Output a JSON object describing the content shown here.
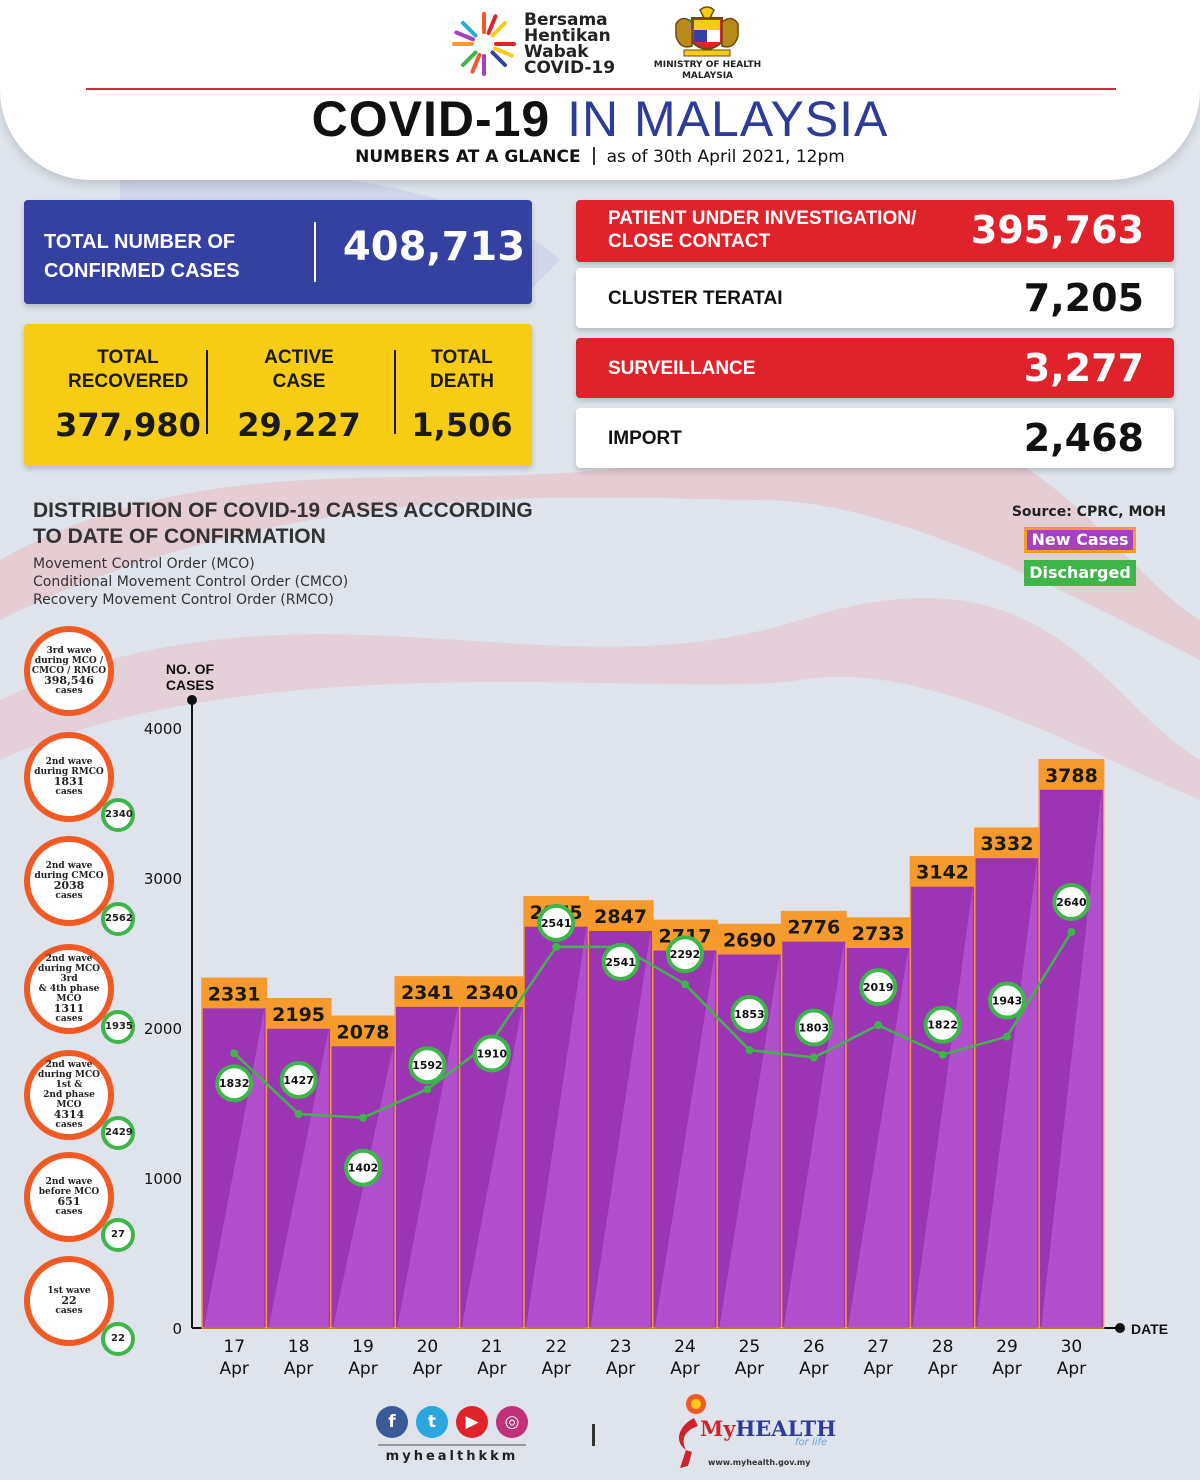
{
  "header": {
    "campaign_lines": [
      "Bersama",
      "Hentikan",
      "Wabak",
      "COVID-19"
    ],
    "ministry_lines": [
      "MINISTRY OF HEALTH",
      "MALAYSIA"
    ],
    "title_part1": "COVID-19",
    "title_part2": "IN MALAYSIA",
    "subtitle_bold": "NUMBERS AT A GLANCE",
    "subtitle_date": "as of 30th April 2021, 12pm"
  },
  "stats": {
    "total_confirmed_label": "TOTAL NUMBER OF CONFIRMED CASES",
    "total_confirmed_value": "408,713",
    "recovered_label": "TOTAL RECOVERED",
    "recovered_value": "377,980",
    "active_label": "ACTIVE CASE",
    "active_value": "29,227",
    "death_label": "TOTAL DEATH",
    "death_value": "1,506",
    "pui_label": "PATIENT UNDER INVESTIGATION/ CLOSE CONTACT",
    "pui_value": "395,763",
    "cluster_label": "CLUSTER TERATAI",
    "cluster_value": "7,205",
    "surveillance_label": "SURVEILLANCE",
    "surveillance_value": "3,277",
    "import_label": "IMPORT",
    "import_value": "2,468"
  },
  "distribution": {
    "title": "DISTRIBUTION OF COVID-19 CASES ACCORDING TO DATE OF CONFIRMATION",
    "notes": [
      "Movement Control Order (MCO)",
      "Conditional Movement Control Order (CMCO)",
      "Recovery Movement Control Order (RMCO)"
    ],
    "source": "Source: CPRC, MOH",
    "legend_new": "New Cases",
    "legend_discharged": "Discharged"
  },
  "waves": [
    {
      "lines": [
        "3rd wave",
        "during MCO /",
        "CMCO / RMCO"
      ],
      "cases": "398,546",
      "unit": "cases",
      "badge": ""
    },
    {
      "lines": [
        "2nd wave",
        "during RMCO"
      ],
      "cases": "1831",
      "unit": "cases",
      "badge": "2340"
    },
    {
      "lines": [
        "2nd wave",
        "during CMCO"
      ],
      "cases": "2038",
      "unit": "cases",
      "badge": "2562"
    },
    {
      "lines": [
        "2nd wave",
        "during MCO 3rd",
        "& 4th phase MCO"
      ],
      "cases": "1311",
      "unit": "cases",
      "badge": "1935"
    },
    {
      "lines": [
        "2nd wave",
        "during MCO 1st &",
        "2nd phase MCO"
      ],
      "cases": "4314",
      "unit": "cases",
      "badge": "2429"
    },
    {
      "lines": [
        "2nd wave",
        "before MCO"
      ],
      "cases": "651",
      "unit": "cases",
      "badge": "27"
    },
    {
      "lines": [
        "1st wave"
      ],
      "cases": "22",
      "unit": "cases",
      "badge": "22"
    }
  ],
  "chart_data": {
    "type": "bar",
    "ylabel": "NO. OF CASES",
    "xlabel": "DATE",
    "ylim": [
      0,
      4000
    ],
    "yticks": [
      0,
      1000,
      2000,
      3000,
      4000
    ],
    "categories": [
      [
        "17",
        "Apr"
      ],
      [
        "18",
        "Apr"
      ],
      [
        "19",
        "Apr"
      ],
      [
        "20",
        "Apr"
      ],
      [
        "21",
        "Apr"
      ],
      [
        "22",
        "Apr"
      ],
      [
        "23",
        "Apr"
      ],
      [
        "24",
        "Apr"
      ],
      [
        "25",
        "Apr"
      ],
      [
        "26",
        "Apr"
      ],
      [
        "27",
        "Apr"
      ],
      [
        "28",
        "Apr"
      ],
      [
        "29",
        "Apr"
      ],
      [
        "30",
        "Apr"
      ]
    ],
    "series": [
      {
        "name": "New Cases",
        "type": "bar",
        "color": "#a442bf",
        "values": [
          2331,
          2195,
          2078,
          2341,
          2340,
          2875,
          2847,
          2717,
          2690,
          2776,
          2733,
          3142,
          3332,
          3788
        ]
      },
      {
        "name": "Discharged",
        "type": "line",
        "color": "#3db54a",
        "values": [
          1832,
          1427,
          1402,
          1592,
          1910,
          2541,
          2541,
          2292,
          1853,
          1803,
          2019,
          1822,
          1943,
          2640
        ]
      }
    ]
  },
  "footer": {
    "handle": "myhealthkkm",
    "brand_prefix": "My",
    "brand_rest": "HEALTH",
    "tagline": "for life",
    "url": "www.myhealth.gov.my"
  },
  "colors": {
    "blue": "#3441a1",
    "yellow": "#f6cc14",
    "red": "#e0232b",
    "bar": "#a442bf",
    "label_orange": "#f79a2e",
    "discharged_green": "#3db54a",
    "wave_orange": "#f15a24"
  }
}
